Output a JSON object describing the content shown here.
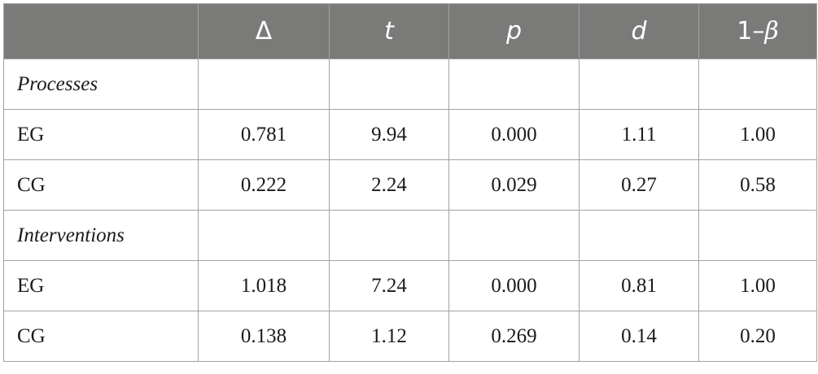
{
  "table": {
    "headers": {
      "col1": "",
      "delta": "Δ",
      "t": "t",
      "p": "p",
      "d": "d",
      "power_prefix": "1–",
      "power_beta": "β"
    },
    "sections": [
      {
        "title": "Processes",
        "rows": [
          {
            "label": "EG",
            "delta": "0.781",
            "t": "9.94",
            "p": "0.000",
            "d": "1.11",
            "power": "1.00"
          },
          {
            "label": "CG",
            "delta": "0.222",
            "t": "2.24",
            "p": "0.029",
            "d": "0.27",
            "power": "0.58"
          }
        ]
      },
      {
        "title": "Interventions",
        "rows": [
          {
            "label": "EG",
            "delta": "1.018",
            "t": "7.24",
            "p": "0.000",
            "d": "0.81",
            "power": "1.00"
          },
          {
            "label": "CG",
            "delta": "0.138",
            "t": "1.12",
            "p": "0.269",
            "d": "0.14",
            "power": "0.20"
          }
        ]
      }
    ]
  }
}
